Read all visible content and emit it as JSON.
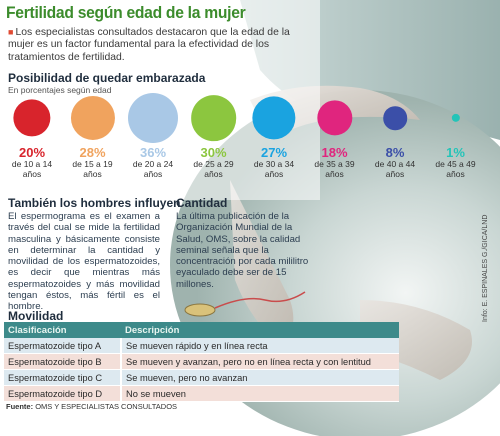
{
  "title": "Fertilidad según edad de la mujer",
  "intro": "Los especialistas consultados destacaron que la edad de la mujer es un factor fundamental para la efectividad de los tratamientos de fertilidad.",
  "possibility": {
    "heading": "Posibilidad de quedar embarazada",
    "subheading": "En porcentajes según edad",
    "items": [
      {
        "pct": "20%",
        "value": 20,
        "range": "de 10 a 14 años",
        "color": "#d8242c"
      },
      {
        "pct": "28%",
        "value": 28,
        "range": "de 15 a 19 años",
        "color": "#f0a35e"
      },
      {
        "pct": "36%",
        "value": 36,
        "range": "de 20 a 24 años",
        "color": "#a9c8e6"
      },
      {
        "pct": "30%",
        "value": 30,
        "range": "de 25 a 29 años",
        "color": "#8cc63f"
      },
      {
        "pct": "27%",
        "value": 27,
        "range": "de 30 a 34 años",
        "color": "#1aa3e0"
      },
      {
        "pct": "18%",
        "value": 18,
        "range": "de 35 a 39 años",
        "color": "#e0257e"
      },
      {
        "pct": "8%",
        "value": 8,
        "range": "de 40 a 44 años",
        "color": "#3b4fa8"
      },
      {
        "pct": "1%",
        "value": 1,
        "range": "de 45 a 49 años",
        "color": "#23c4b8"
      }
    ]
  },
  "men": {
    "heading": "También los hombres influyen",
    "text": "El espermograma es el examen a través del cual se mide la fertilidad masculina y básicamente consiste en determinar la cantidad y movilidad de los espermatozoides, es decir que mientras más espermatozoides y más movilidad tengan éstos, más fértil es el hombre."
  },
  "quantity": {
    "heading": "Cantidad",
    "text": "La última publicación de la Organización Mundial de la Salud, OMS, sobre la calidad seminal señala que la concentración por cada mililitro eyaculado debe ser de 15 millones."
  },
  "motility": {
    "heading": "Movilidad",
    "col_class": "Clasificación",
    "col_desc": "Descripción",
    "rows": [
      {
        "type": "Espermatozoide tipo A",
        "desc": "Se mueven rápido y en línea recta"
      },
      {
        "type": "Espermatozoide tipo B",
        "desc": "Se mueven y avanzan, pero no en línea recta y con lentitud"
      },
      {
        "type": "Espermatozoide tipo C",
        "desc": "Se mueven, pero no avanzan"
      },
      {
        "type": "Espermatozoide tipo D",
        "desc": "No se mueven"
      }
    ]
  },
  "source": {
    "label": "Fuente:",
    "text": "OMS Y ESPECIALISTAS CONSULTADOS"
  },
  "credit": "Info: E. ESPINALES G./GICA/LND"
}
